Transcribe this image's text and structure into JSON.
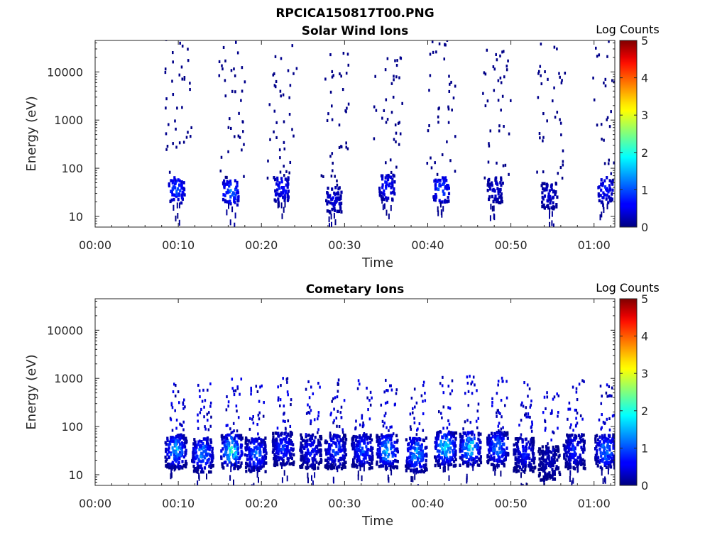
{
  "figure_title": "RPCICA150817T00.PNG",
  "chart_data": [
    {
      "type": "heatmap",
      "title": "Solar Wind Ions",
      "xlabel": "Time",
      "ylabel": "Energy (eV)",
      "x_ticks": [
        "00:00",
        "00:10",
        "00:20",
        "00:30",
        "00:40",
        "00:50",
        "01:00"
      ],
      "x_range_min": [
        0,
        62.5
      ],
      "y_ticks": [
        "10",
        "100",
        "1000",
        "10000"
      ],
      "y_scale": "log",
      "y_range_eV": [
        6,
        45000
      ],
      "colorbar": {
        "label": "Log Counts",
        "ticks": [
          "0",
          "1",
          "2",
          "3",
          "4",
          "5"
        ],
        "range": [
          0,
          5
        ],
        "colormap": "jet"
      },
      "bursts": [
        {
          "time_min": 9.7,
          "energy_eV": 40,
          "peak_log_counts": 1.2
        },
        {
          "time_min": 16.2,
          "energy_eV": 35,
          "peak_log_counts": 1.4
        },
        {
          "time_min": 22.3,
          "energy_eV": 40,
          "peak_log_counts": 0.9
        },
        {
          "time_min": 28.6,
          "energy_eV": 25,
          "peak_log_counts": 0.6
        },
        {
          "time_min": 35.0,
          "energy_eV": 45,
          "peak_log_counts": 0.9
        },
        {
          "time_min": 41.5,
          "energy_eV": 40,
          "peak_log_counts": 1.3
        },
        {
          "time_min": 48.0,
          "energy_eV": 40,
          "peak_log_counts": 0.5
        },
        {
          "time_min": 54.5,
          "energy_eV": 30,
          "peak_log_counts": 0.5
        },
        {
          "time_min": 61.2,
          "energy_eV": 40,
          "peak_log_counts": 0.9
        }
      ]
    },
    {
      "type": "heatmap",
      "title": "Cometary Ions",
      "xlabel": "Time",
      "ylabel": "Energy (eV)",
      "x_ticks": [
        "00:00",
        "00:10",
        "00:20",
        "00:30",
        "00:40",
        "00:50",
        "01:00"
      ],
      "x_range_min": [
        0,
        62.5
      ],
      "y_ticks": [
        "10",
        "100",
        "1000",
        "10000"
      ],
      "y_scale": "log",
      "y_range_eV": [
        6,
        45000
      ],
      "colorbar": {
        "label": "Log Counts",
        "ticks": [
          "0",
          "1",
          "2",
          "3",
          "4",
          "5"
        ],
        "range": [
          0,
          5
        ],
        "colormap": "jet"
      },
      "bursts": [
        {
          "time_min": 9.6,
          "energy_eV": 35,
          "peak_log_counts": 1.8
        },
        {
          "time_min": 12.8,
          "energy_eV": 30,
          "peak_log_counts": 1.6
        },
        {
          "time_min": 16.3,
          "energy_eV": 35,
          "peak_log_counts": 2.4
        },
        {
          "time_min": 19.2,
          "energy_eV": 30,
          "peak_log_counts": 1.5
        },
        {
          "time_min": 22.5,
          "energy_eV": 40,
          "peak_log_counts": 1.1
        },
        {
          "time_min": 25.8,
          "energy_eV": 35,
          "peak_log_counts": 0.9
        },
        {
          "time_min": 28.8,
          "energy_eV": 35,
          "peak_log_counts": 1.2
        },
        {
          "time_min": 32.0,
          "energy_eV": 35,
          "peak_log_counts": 1.3
        },
        {
          "time_min": 35.0,
          "energy_eV": 35,
          "peak_log_counts": 1.9
        },
        {
          "time_min": 38.5,
          "energy_eV": 30,
          "peak_log_counts": 1.8
        },
        {
          "time_min": 42.0,
          "energy_eV": 40,
          "peak_log_counts": 2.3
        },
        {
          "time_min": 45.0,
          "energy_eV": 40,
          "peak_log_counts": 2.1
        },
        {
          "time_min": 48.3,
          "energy_eV": 40,
          "peak_log_counts": 1.6
        },
        {
          "time_min": 51.5,
          "energy_eV": 30,
          "peak_log_counts": 0.9
        },
        {
          "time_min": 54.5,
          "energy_eV": 20,
          "peak_log_counts": 0.4
        },
        {
          "time_min": 57.5,
          "energy_eV": 35,
          "peak_log_counts": 1.0
        },
        {
          "time_min": 61.3,
          "energy_eV": 35,
          "peak_log_counts": 1.7
        }
      ]
    }
  ]
}
